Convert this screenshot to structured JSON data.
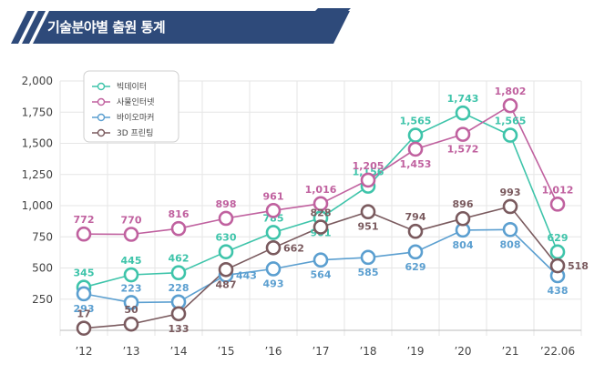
{
  "header": {
    "title": "기술분야별 출원 통계"
  },
  "chart_data": {
    "type": "line",
    "title": "기술분야별 출원 통계",
    "categories": [
      "’12",
      "’13",
      "’14",
      "’15",
      "’16",
      "’17",
      "’18",
      "’19",
      "’20",
      "’21",
      "’22.06"
    ],
    "ylim": [
      0,
      2000
    ],
    "yticks": [
      250,
      500,
      750,
      1000,
      1250,
      1500,
      1750,
      2000
    ],
    "ytick_labels": [
      "250",
      "500",
      "750",
      "1,000",
      "1,250",
      "1,500",
      "1,750",
      "2,000"
    ],
    "legend_position": "top-left",
    "series": [
      {
        "name": "빅데이터",
        "color": "#3ec4aa",
        "values": [
          345,
          445,
          462,
          630,
          785,
          901,
          1156,
          1565,
          1743,
          1565,
          629
        ],
        "labels": [
          "345",
          "445",
          "462",
          "630",
          "785",
          "901",
          "1,156",
          "1,565",
          "1,743",
          "1,565",
          "629"
        ]
      },
      {
        "name": "사물인터넷",
        "color": "#c0619f",
        "values": [
          772,
          770,
          816,
          898,
          961,
          1016,
          1205,
          1453,
          1572,
          1802,
          1012
        ],
        "labels": [
          "772",
          "770",
          "816",
          "898",
          "961",
          "1,016",
          "1,205",
          "1,453",
          "1,572",
          "1,802",
          "1,012"
        ]
      },
      {
        "name": "바이오마커",
        "color": "#5b9fd0",
        "values": [
          293,
          223,
          228,
          443,
          493,
          564,
          585,
          629,
          804,
          808,
          438
        ],
        "labels": [
          "293",
          "223",
          "228",
          "443",
          "493",
          "564",
          "585",
          "629",
          "804",
          "808",
          "438"
        ]
      },
      {
        "name": "3D 프린팅",
        "color": "#7a5a5e",
        "values": [
          17,
          50,
          133,
          487,
          662,
          828,
          951,
          794,
          896,
          993,
          518
        ],
        "labels": [
          "17",
          "50",
          "133",
          "487",
          "662",
          "828",
          "951",
          "794",
          "896",
          "993",
          "518"
        ]
      }
    ]
  }
}
